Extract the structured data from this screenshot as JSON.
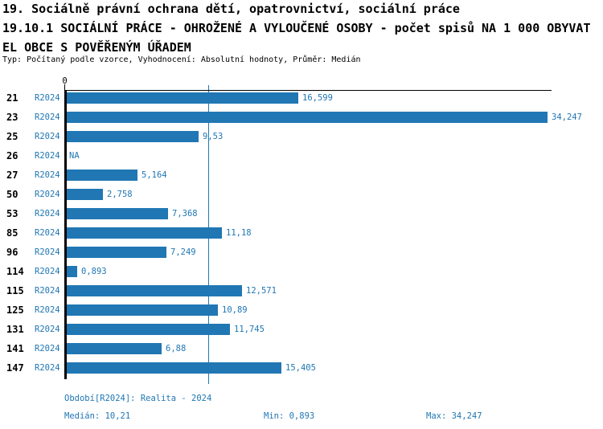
{
  "header": {
    "line1": "19. Sociálně právní ochrana dětí, opatrovnictví, sociální práce",
    "line2": "19.10.1 SOCIÁLNÍ PRÁCE - OHROŽENÉ A VYLOUČENÉ OSOBY - počet spisů NA 1 000 OBYVAT",
    "line3": "EL OBCE S POVĚŘENÝM ÚŘADEM",
    "meta": "Typ: Počítaný podle vzorce, Vyhodnocení: Absolutní hodnoty, Průměr: Medián"
  },
  "chart_data": {
    "type": "bar",
    "orientation": "horizontal",
    "title": "19.10.1 SOCIÁLNÍ PRÁCE - OHROŽENÉ A VYLOUČENÉ OSOBY - počet spisů NA 1 000 OBYVATEL OBCE S POVĚŘENÝM ÚŘADEM",
    "xlabel": "",
    "ylabel": "",
    "xlim": [
      0,
      34.5
    ],
    "grid": false,
    "axis": {
      "origin_label": "0",
      "max": 34.247,
      "median": 10.21
    },
    "series_name": "R2024",
    "categories": [
      "21",
      "23",
      "25",
      "26",
      "27",
      "50",
      "53",
      "85",
      "96",
      "114",
      "115",
      "125",
      "131",
      "141",
      "147"
    ],
    "values": [
      16.599,
      34.247,
      9.53,
      null,
      5.164,
      2.758,
      7.368,
      11.18,
      7.249,
      0.893,
      12.571,
      10.89,
      11.745,
      6.88,
      15.405
    ],
    "rows": [
      {
        "id": "21",
        "period": "R2024",
        "value": 16.599,
        "label": "16,599"
      },
      {
        "id": "23",
        "period": "R2024",
        "value": 34.247,
        "label": "34,247"
      },
      {
        "id": "25",
        "period": "R2024",
        "value": 9.53,
        "label": "9,53"
      },
      {
        "id": "26",
        "period": "R2024",
        "value": null,
        "label": "NA"
      },
      {
        "id": "27",
        "period": "R2024",
        "value": 5.164,
        "label": "5,164"
      },
      {
        "id": "50",
        "period": "R2024",
        "value": 2.758,
        "label": "2,758"
      },
      {
        "id": "53",
        "period": "R2024",
        "value": 7.368,
        "label": "7,368"
      },
      {
        "id": "85",
        "period": "R2024",
        "value": 11.18,
        "label": "11,18"
      },
      {
        "id": "96",
        "period": "R2024",
        "value": 7.249,
        "label": "7,249"
      },
      {
        "id": "114",
        "period": "R2024",
        "value": 0.893,
        "label": "0,893"
      },
      {
        "id": "115",
        "period": "R2024",
        "value": 12.571,
        "label": "12,571"
      },
      {
        "id": "125",
        "period": "R2024",
        "value": 10.89,
        "label": "10,89"
      },
      {
        "id": "131",
        "period": "R2024",
        "value": 11.745,
        "label": "11,745"
      },
      {
        "id": "141",
        "period": "R2024",
        "value": 6.88,
        "label": "6,88"
      },
      {
        "id": "147",
        "period": "R2024",
        "value": 15.405,
        "label": "15,405"
      }
    ]
  },
  "footer": {
    "period_line": "Období[R2024]: Realita - 2024",
    "median_label": "Medián: 10,21",
    "min_label": "Min: 0,893",
    "max_label": "Max: 34,247"
  },
  "colors": {
    "bar": "#2077B4",
    "accent_text": "#2077B4",
    "axis": "#000000",
    "background": "#FFFFFF"
  }
}
